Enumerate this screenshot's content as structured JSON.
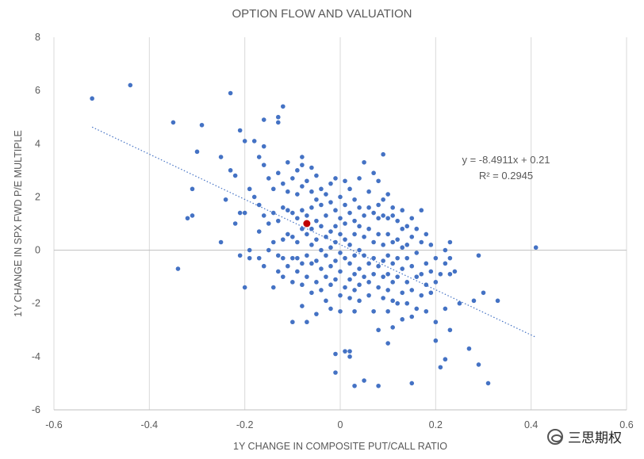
{
  "chart_data": {
    "type": "scatter",
    "title": "OPTION FLOW AND VALUATION",
    "xlabel": "1Y CHANGE IN COMPOSITE PUT/CALL RATIO",
    "ylabel": "1Y CHANGE IN SPX FWD P/E MULTIPLE",
    "xlim": [
      -0.6,
      0.6
    ],
    "ylim": [
      -6,
      8
    ],
    "x_ticks": [
      "-0.6",
      "-0.4",
      "-0.2",
      "0",
      "0.2",
      "0.4",
      "0.6"
    ],
    "y_ticks": [
      "-6",
      "-4",
      "-2",
      "0",
      "2",
      "4",
      "6",
      "8"
    ],
    "grid": "vertical",
    "trendline": {
      "style": "dotted linear",
      "slope": -8.4911,
      "intercept": 0.21,
      "x_range": [
        -0.52,
        0.41
      ],
      "equation": "y = -8.4911x + 0.21",
      "r_squared": "R² = 0.2945"
    },
    "highlight_point": {
      "x": -0.07,
      "y": 1.0,
      "color": "#c00000"
    },
    "point_color": "#4472c4",
    "points": [
      [
        -0.52,
        5.7
      ],
      [
        -0.44,
        6.2
      ],
      [
        -0.35,
        4.8
      ],
      [
        -0.3,
        3.7
      ],
      [
        -0.29,
        4.7
      ],
      [
        -0.31,
        2.3
      ],
      [
        -0.32,
        1.2
      ],
      [
        -0.31,
        1.3
      ],
      [
        -0.34,
        -0.7
      ],
      [
        -0.25,
        3.5
      ],
      [
        -0.24,
        1.9
      ],
      [
        -0.25,
        0.3
      ],
      [
        -0.23,
        5.9
      ],
      [
        -0.23,
        3.0
      ],
      [
        -0.22,
        2.8
      ],
      [
        -0.22,
        1.0
      ],
      [
        -0.21,
        4.5
      ],
      [
        -0.2,
        4.1
      ],
      [
        -0.21,
        1.4
      ],
      [
        -0.2,
        1.4
      ],
      [
        -0.19,
        2.3
      ],
      [
        -0.19,
        0.0
      ],
      [
        -0.19,
        -0.3
      ],
      [
        -0.2,
        -1.4
      ],
      [
        -0.21,
        -0.2
      ],
      [
        -0.18,
        4.1
      ],
      [
        -0.18,
        2.0
      ],
      [
        -0.17,
        3.5
      ],
      [
        -0.17,
        1.7
      ],
      [
        -0.17,
        0.7
      ],
      [
        -0.17,
        -0.3
      ],
      [
        -0.16,
        4.9
      ],
      [
        -0.16,
        3.9
      ],
      [
        -0.16,
        3.2
      ],
      [
        -0.16,
        1.3
      ],
      [
        -0.16,
        -0.6
      ],
      [
        -0.15,
        2.7
      ],
      [
        -0.15,
        1.0
      ],
      [
        -0.15,
        0.0
      ],
      [
        -0.14,
        2.3
      ],
      [
        -0.14,
        1.4
      ],
      [
        -0.14,
        0.3
      ],
      [
        -0.14,
        -1.4
      ],
      [
        -0.13,
        4.8
      ],
      [
        -0.13,
        5.0
      ],
      [
        -0.13,
        2.9
      ],
      [
        -0.13,
        1.1
      ],
      [
        -0.13,
        -0.2
      ],
      [
        -0.13,
        -0.8
      ],
      [
        -0.12,
        5.4
      ],
      [
        -0.12,
        2.5
      ],
      [
        -0.12,
        1.6
      ],
      [
        -0.12,
        0.4
      ],
      [
        -0.12,
        -0.3
      ],
      [
        -0.12,
        -1.0
      ],
      [
        -0.11,
        3.3
      ],
      [
        -0.11,
        2.2
      ],
      [
        -0.11,
        1.5
      ],
      [
        -0.11,
        0.6
      ],
      [
        -0.11,
        -0.6
      ],
      [
        -0.1,
        2.7
      ],
      [
        -0.1,
        1.4
      ],
      [
        -0.1,
        0.5
      ],
      [
        -0.1,
        -0.3
      ],
      [
        -0.1,
        -1.2
      ],
      [
        -0.1,
        -2.7
      ],
      [
        -0.09,
        3.0
      ],
      [
        -0.09,
        2.1
      ],
      [
        -0.09,
        1.2
      ],
      [
        -0.09,
        0.3
      ],
      [
        -0.09,
        -0.3
      ],
      [
        -0.09,
        -0.8
      ],
      [
        -0.08,
        3.5
      ],
      [
        -0.08,
        3.2
      ],
      [
        -0.08,
        2.4
      ],
      [
        -0.08,
        1.5
      ],
      [
        -0.08,
        0.8
      ],
      [
        -0.08,
        -0.5
      ],
      [
        -0.08,
        -1.3
      ],
      [
        -0.08,
        -2.1
      ],
      [
        -0.07,
        2.6
      ],
      [
        -0.07,
        1.3
      ],
      [
        -0.07,
        0.6
      ],
      [
        -0.07,
        -0.2
      ],
      [
        -0.07,
        -1.0
      ],
      [
        -0.07,
        -2.7
      ],
      [
        -0.06,
        3.1
      ],
      [
        -0.06,
        2.2
      ],
      [
        -0.06,
        1.6
      ],
      [
        -0.06,
        0.8
      ],
      [
        -0.06,
        0.2
      ],
      [
        -0.06,
        -0.5
      ],
      [
        -0.06,
        -1.6
      ],
      [
        -0.05,
        2.8
      ],
      [
        -0.05,
        1.9
      ],
      [
        -0.05,
        1.1
      ],
      [
        -0.05,
        0.4
      ],
      [
        -0.05,
        -0.4
      ],
      [
        -0.05,
        -1.2
      ],
      [
        -0.05,
        -2.4
      ],
      [
        -0.04,
        2.3
      ],
      [
        -0.04,
        1.7
      ],
      [
        -0.04,
        0.9
      ],
      [
        -0.04,
        0.0
      ],
      [
        -0.04,
        -0.7
      ],
      [
        -0.04,
        -1.5
      ],
      [
        -0.03,
        2.1
      ],
      [
        -0.03,
        1.3
      ],
      [
        -0.03,
        0.5
      ],
      [
        -0.03,
        -0.2
      ],
      [
        -0.03,
        -1.0
      ],
      [
        -0.03,
        -1.9
      ],
      [
        -0.02,
        2.5
      ],
      [
        -0.02,
        1.8
      ],
      [
        -0.02,
        0.7
      ],
      [
        -0.02,
        0.1
      ],
      [
        -0.02,
        -0.6
      ],
      [
        -0.02,
        -1.3
      ],
      [
        -0.02,
        -2.2
      ],
      [
        -0.01,
        2.7
      ],
      [
        -0.01,
        1.5
      ],
      [
        -0.01,
        0.9
      ],
      [
        -0.01,
        0.3
      ],
      [
        -0.01,
        -0.4
      ],
      [
        -0.01,
        -1.1
      ],
      [
        -0.01,
        -3.9
      ],
      [
        -0.01,
        -4.6
      ],
      [
        0.0,
        2.0
      ],
      [
        0.0,
        1.2
      ],
      [
        0.0,
        0.6
      ],
      [
        0.0,
        -0.1
      ],
      [
        0.0,
        -0.8
      ],
      [
        0.0,
        -1.7
      ],
      [
        0.0,
        -2.3
      ],
      [
        0.01,
        2.6
      ],
      [
        0.01,
        1.7
      ],
      [
        0.01,
        1.0
      ],
      [
        0.01,
        0.4
      ],
      [
        0.01,
        -0.3
      ],
      [
        0.01,
        -1.4
      ],
      [
        0.01,
        -3.8
      ],
      [
        0.02,
        2.3
      ],
      [
        0.02,
        1.4
      ],
      [
        0.02,
        0.2
      ],
      [
        0.02,
        -0.5
      ],
      [
        0.02,
        -1.1
      ],
      [
        0.02,
        -1.8
      ],
      [
        0.02,
        -3.8
      ],
      [
        0.02,
        -4.0
      ],
      [
        0.03,
        1.9
      ],
      [
        0.03,
        1.1
      ],
      [
        0.03,
        0.6
      ],
      [
        0.03,
        -0.2
      ],
      [
        0.03,
        -0.9
      ],
      [
        0.03,
        -1.5
      ],
      [
        0.03,
        -2.3
      ],
      [
        0.03,
        -5.1
      ],
      [
        0.04,
        2.7
      ],
      [
        0.04,
        1.6
      ],
      [
        0.04,
        0.9
      ],
      [
        0.04,
        0.0
      ],
      [
        0.04,
        -0.7
      ],
      [
        0.04,
        -1.3
      ],
      [
        0.04,
        -1.9
      ],
      [
        0.05,
        3.3
      ],
      [
        0.05,
        1.3
      ],
      [
        0.05,
        0.5
      ],
      [
        0.05,
        -0.2
      ],
      [
        0.05,
        -1.0
      ],
      [
        0.05,
        -4.9
      ],
      [
        0.06,
        2.2
      ],
      [
        0.06,
        1.6
      ],
      [
        0.06,
        0.8
      ],
      [
        0.06,
        -0.5
      ],
      [
        0.06,
        -1.2
      ],
      [
        0.06,
        -1.7
      ],
      [
        0.07,
        2.9
      ],
      [
        0.07,
        1.4
      ],
      [
        0.07,
        0.3
      ],
      [
        0.07,
        -0.3
      ],
      [
        0.07,
        -0.9
      ],
      [
        0.07,
        -2.3
      ],
      [
        0.08,
        2.6
      ],
      [
        0.08,
        1.7
      ],
      [
        0.08,
        1.2
      ],
      [
        0.08,
        0.6
      ],
      [
        0.08,
        -0.6
      ],
      [
        0.08,
        -1.4
      ],
      [
        0.08,
        -3.0
      ],
      [
        0.08,
        -5.1
      ],
      [
        0.09,
        3.6
      ],
      [
        0.09,
        1.9
      ],
      [
        0.09,
        1.3
      ],
      [
        0.09,
        0.2
      ],
      [
        0.09,
        -0.4
      ],
      [
        0.09,
        -1.0
      ],
      [
        0.09,
        -1.8
      ],
      [
        0.1,
        2.1
      ],
      [
        0.1,
        1.2
      ],
      [
        0.1,
        0.6
      ],
      [
        0.1,
        -0.2
      ],
      [
        0.1,
        -0.9
      ],
      [
        0.1,
        -1.5
      ],
      [
        0.1,
        -2.3
      ],
      [
        0.1,
        -3.5
      ],
      [
        0.11,
        1.6
      ],
      [
        0.11,
        1.3
      ],
      [
        0.11,
        0.3
      ],
      [
        0.11,
        -0.5
      ],
      [
        0.11,
        -1.2
      ],
      [
        0.11,
        -1.9
      ],
      [
        0.11,
        -2.9
      ],
      [
        0.12,
        1.1
      ],
      [
        0.12,
        0.4
      ],
      [
        0.12,
        -0.3
      ],
      [
        0.12,
        -1.0
      ],
      [
        0.12,
        -2.0
      ],
      [
        0.13,
        1.5
      ],
      [
        0.13,
        0.8
      ],
      [
        0.13,
        0.1
      ],
      [
        0.13,
        -0.7
      ],
      [
        0.13,
        -1.6
      ],
      [
        0.13,
        -2.6
      ],
      [
        0.14,
        0.9
      ],
      [
        0.14,
        0.2
      ],
      [
        0.14,
        -0.3
      ],
      [
        0.14,
        -1.2
      ],
      [
        0.14,
        -2.0
      ],
      [
        0.15,
        1.2
      ],
      [
        0.15,
        0.5
      ],
      [
        0.15,
        -0.6
      ],
      [
        0.15,
        -1.5
      ],
      [
        0.15,
        -2.5
      ],
      [
        0.15,
        -5.0
      ],
      [
        0.16,
        0.8
      ],
      [
        0.16,
        -0.1
      ],
      [
        0.16,
        -1.0
      ],
      [
        0.16,
        -2.2
      ],
      [
        0.17,
        1.5
      ],
      [
        0.17,
        0.3
      ],
      [
        0.17,
        -0.9
      ],
      [
        0.17,
        -1.7
      ],
      [
        0.18,
        0.6
      ],
      [
        0.18,
        -0.5
      ],
      [
        0.18,
        -1.3
      ],
      [
        0.18,
        -2.3
      ],
      [
        0.19,
        0.2
      ],
      [
        0.19,
        -0.8
      ],
      [
        0.19,
        -1.6
      ],
      [
        0.2,
        -0.3
      ],
      [
        0.2,
        -1.2
      ],
      [
        0.2,
        -2.7
      ],
      [
        0.2,
        -3.4
      ],
      [
        0.21,
        -0.9
      ],
      [
        0.21,
        -4.4
      ],
      [
        0.22,
        0.0
      ],
      [
        0.22,
        -0.5
      ],
      [
        0.22,
        -2.2
      ],
      [
        0.22,
        -4.1
      ],
      [
        0.23,
        0.3
      ],
      [
        0.23,
        -0.3
      ],
      [
        0.23,
        -0.9
      ],
      [
        0.23,
        -3.0
      ],
      [
        0.24,
        -0.8
      ],
      [
        0.25,
        -2.0
      ],
      [
        0.27,
        -3.7
      ],
      [
        0.28,
        -1.9
      ],
      [
        0.29,
        -0.2
      ],
      [
        0.29,
        -4.3
      ],
      [
        0.3,
        -1.6
      ],
      [
        0.31,
        -5.0
      ],
      [
        0.33,
        -1.9
      ],
      [
        0.41,
        0.1
      ]
    ]
  },
  "watermark": {
    "text": "三思期权"
  }
}
